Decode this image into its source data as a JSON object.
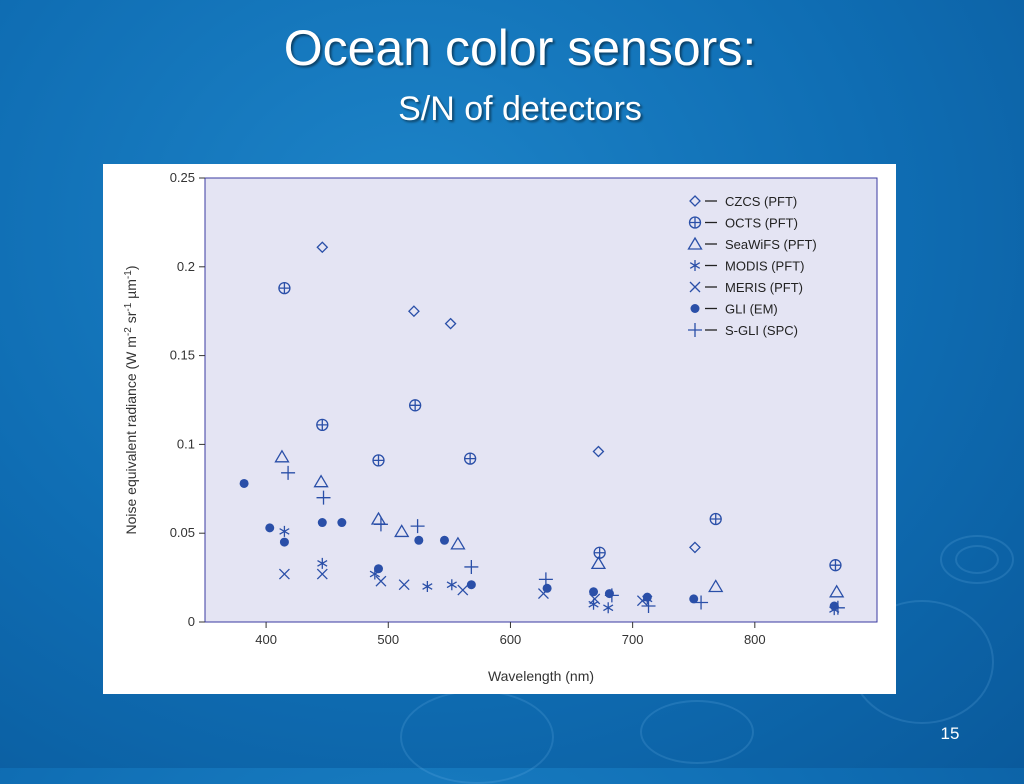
{
  "slide": {
    "title": "Ocean color sensors:",
    "subtitle": "S/N of detectors",
    "page_number": "15"
  },
  "chart_data": {
    "type": "scatter",
    "title": "",
    "xlabel": "Wavelength (nm)",
    "ylabel_parts": {
      "main": "Noise equivalent radiance (W m",
      "sup1": "-2",
      "mid1": " sr",
      "sup2": "-1",
      "mid2": " µm",
      "sup3": "-1",
      "end": ")"
    },
    "xlim": [
      350,
      900
    ],
    "ylim": [
      0,
      0.25
    ],
    "x_ticks": [
      400,
      500,
      600,
      700,
      800
    ],
    "y_ticks": [
      0,
      0.05,
      0.1,
      0.15,
      0.2,
      0.25
    ],
    "y_tick_labels": [
      "0",
      "0.05",
      "0.1",
      "0.15",
      "0.2",
      "0.25"
    ],
    "grid": false,
    "legend_position": "top-right",
    "colors": {
      "marker": "#2a4fa8",
      "plot_background": "#e4e4f3",
      "axis": "#333333",
      "frame": "#3a3aa0"
    },
    "series": [
      {
        "name": "CZCS (PFT)",
        "marker": "diamond",
        "x": [
          446,
          521,
          551,
          672,
          751
        ],
        "y": [
          0.211,
          0.175,
          0.168,
          0.096,
          0.042
        ]
      },
      {
        "name": "OCTS (PFT)",
        "marker": "circle-plus",
        "x": [
          415,
          446,
          492,
          522,
          567,
          673,
          768,
          866
        ],
        "y": [
          0.188,
          0.111,
          0.091,
          0.122,
          0.092,
          0.039,
          0.058,
          0.032
        ]
      },
      {
        "name": "SeaWiFS (PFT)",
        "marker": "triangle",
        "x": [
          413,
          445,
          492,
          511,
          557,
          672,
          768,
          867
        ],
        "y": [
          0.093,
          0.079,
          0.058,
          0.051,
          0.044,
          0.033,
          0.02,
          0.017
        ]
      },
      {
        "name": "MODIS (PFT)",
        "marker": "asterisk",
        "x": [
          415,
          446,
          489,
          532,
          552,
          668,
          680,
          712,
          865
        ],
        "y": [
          0.051,
          0.033,
          0.027,
          0.02,
          0.021,
          0.01,
          0.008,
          0.013,
          0.007
        ]
      },
      {
        "name": "MERIS (PFT)",
        "marker": "x",
        "x": [
          415,
          446,
          494,
          513,
          561,
          627,
          669,
          708
        ],
        "y": [
          0.027,
          0.027,
          0.023,
          0.021,
          0.018,
          0.016,
          0.013,
          0.012
        ]
      },
      {
        "name": "GLI (EM)",
        "marker": "dot",
        "x": [
          382,
          403,
          415,
          446,
          462,
          492,
          525,
          546,
          568,
          630,
          668,
          681,
          712,
          750,
          865
        ],
        "y": [
          0.078,
          0.053,
          0.045,
          0.056,
          0.056,
          0.03,
          0.046,
          0.046,
          0.021,
          0.019,
          0.017,
          0.016,
          0.014,
          0.013,
          0.009
        ]
      },
      {
        "name": "S-GLI (SPC)",
        "marker": "plus",
        "x": [
          418,
          447,
          494,
          524,
          568,
          629,
          683,
          713,
          756,
          868
        ],
        "y": [
          0.084,
          0.07,
          0.055,
          0.054,
          0.031,
          0.024,
          0.015,
          0.009,
          0.011,
          0.008
        ]
      }
    ]
  }
}
